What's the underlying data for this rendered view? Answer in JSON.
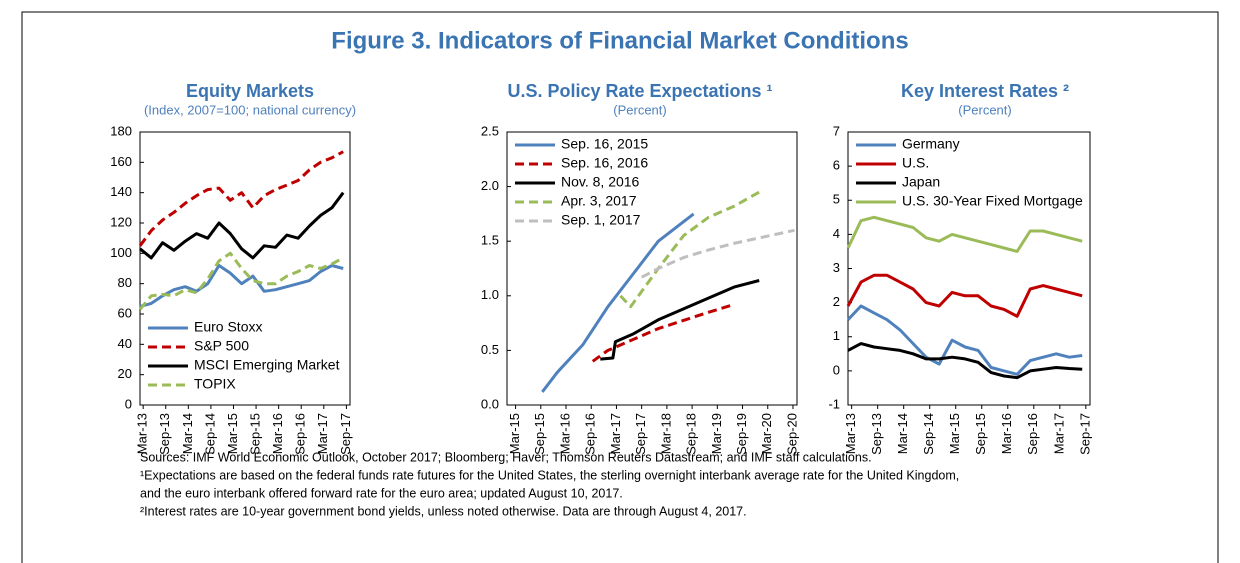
{
  "title": "Figure 3. Indicators of Financial Market Conditions",
  "chart_data": [
    {
      "type": "line",
      "title": "Equity Markets",
      "subtitle": "(Index, 2007=100; national currency)",
      "xlim": [
        2013.1,
        2017.75
      ],
      "xticks": [
        {
          "value": 2013.17,
          "label": "Mar-13"
        },
        {
          "value": 2013.67,
          "label": "Sep-13"
        },
        {
          "value": 2014.17,
          "label": "Mar-14"
        },
        {
          "value": 2014.67,
          "label": "Sep-14"
        },
        {
          "value": 2015.17,
          "label": "Mar-15"
        },
        {
          "value": 2015.67,
          "label": "Sep-15"
        },
        {
          "value": 2016.17,
          "label": "Mar-16"
        },
        {
          "value": 2016.67,
          "label": "Sep-16"
        },
        {
          "value": 2017.17,
          "label": "Mar-17"
        },
        {
          "value": 2017.67,
          "label": "Sep-17"
        }
      ],
      "ylim": [
        0,
        180
      ],
      "yticks": [
        0,
        20,
        40,
        60,
        80,
        100,
        120,
        140,
        160,
        180
      ],
      "legend": "lower-left",
      "series": [
        {
          "name": "Euro Stoxx",
          "color": "#4f81bd",
          "dash": false,
          "x": [
            2013.1,
            2013.35,
            2013.6,
            2013.85,
            2014.1,
            2014.35,
            2014.6,
            2014.85,
            2015.1,
            2015.35,
            2015.6,
            2015.85,
            2016.1,
            2016.35,
            2016.6,
            2016.85,
            2017.1,
            2017.35,
            2017.6
          ],
          "values": [
            65,
            67,
            72,
            76,
            78,
            75,
            80,
            92,
            87,
            80,
            85,
            75,
            76,
            78,
            80,
            82,
            88,
            92,
            90
          ]
        },
        {
          "name": "S&P 500",
          "color": "#c00000",
          "dash": true,
          "x": [
            2013.1,
            2013.35,
            2013.6,
            2013.85,
            2014.1,
            2014.35,
            2014.6,
            2014.85,
            2015.1,
            2015.35,
            2015.6,
            2015.85,
            2016.1,
            2016.35,
            2016.6,
            2016.85,
            2017.1,
            2017.35,
            2017.6
          ],
          "values": [
            105,
            115,
            122,
            127,
            133,
            138,
            142,
            143,
            135,
            140,
            130,
            138,
            142,
            145,
            148,
            155,
            160,
            163,
            167
          ]
        },
        {
          "name": "MSCI Emerging Market",
          "color": "#000000",
          "dash": false,
          "x": [
            2013.1,
            2013.35,
            2013.6,
            2013.85,
            2014.1,
            2014.35,
            2014.6,
            2014.85,
            2015.1,
            2015.35,
            2015.6,
            2015.85,
            2016.1,
            2016.35,
            2016.6,
            2016.85,
            2017.1,
            2017.35,
            2017.6
          ],
          "values": [
            103,
            97,
            107,
            102,
            108,
            113,
            110,
            120,
            113,
            103,
            97,
            105,
            104,
            112,
            110,
            118,
            125,
            130,
            140
          ]
        },
        {
          "name": "TOPIX",
          "color": "#9bbb59",
          "dash": true,
          "x": [
            2013.1,
            2013.35,
            2013.6,
            2013.85,
            2014.1,
            2014.35,
            2014.6,
            2014.85,
            2015.1,
            2015.35,
            2015.6,
            2015.85,
            2016.1,
            2016.35,
            2016.6,
            2016.85,
            2017.1,
            2017.35,
            2017.6
          ],
          "values": [
            63,
            72,
            73,
            72,
            76,
            74,
            83,
            95,
            100,
            90,
            82,
            80,
            80,
            85,
            88,
            92,
            90,
            93,
            97
          ]
        }
      ]
    },
    {
      "type": "line",
      "title": "U.S. Policy Rate Expectations ¹",
      "subtitle": "(Percent)",
      "xlim": [
        2015.0,
        2020.75
      ],
      "xticks": [
        {
          "value": 2015.17,
          "label": "Mar-15"
        },
        {
          "value": 2015.67,
          "label": "Sep-15"
        },
        {
          "value": 2016.17,
          "label": "Mar-16"
        },
        {
          "value": 2016.67,
          "label": "Sep-16"
        },
        {
          "value": 2017.17,
          "label": "Mar-17"
        },
        {
          "value": 2017.67,
          "label": "Sep-17"
        },
        {
          "value": 2018.17,
          "label": "Mar-18"
        },
        {
          "value": 2018.67,
          "label": "Sep-18"
        },
        {
          "value": 2019.17,
          "label": "Mar-19"
        },
        {
          "value": 2019.67,
          "label": "Sep-19"
        },
        {
          "value": 2020.17,
          "label": "Mar-20"
        },
        {
          "value": 2020.67,
          "label": "Sep-20"
        }
      ],
      "ylim": [
        0,
        2.5
      ],
      "yticks": [
        {
          "value": 0,
          "label": "0.0"
        },
        0.5,
        {
          "value": 1,
          "label": "1.0"
        },
        1.5,
        {
          "value": 2,
          "label": "2.0"
        },
        2.5
      ],
      "legend": "upper-left",
      "series": [
        {
          "name": "Sep. 16, 2015",
          "color": "#4f81bd",
          "dash": false,
          "x": [
            2015.7,
            2016.0,
            2016.5,
            2017.0,
            2017.5,
            2018.0,
            2018.7
          ],
          "values": [
            0.12,
            0.3,
            0.55,
            0.9,
            1.2,
            1.5,
            1.75
          ]
        },
        {
          "name": "Sep. 16, 2016",
          "color": "#c00000",
          "dash": true,
          "x": [
            2016.7,
            2017.0,
            2018.0,
            2019.0,
            2019.5
          ],
          "values": [
            0.4,
            0.5,
            0.7,
            0.85,
            0.92
          ]
        },
        {
          "name": "Nov. 8, 2016",
          "color": "#000000",
          "dash": false,
          "x": [
            2016.85,
            2017.1,
            2017.15,
            2017.5,
            2018.0,
            2018.5,
            2019.0,
            2019.5,
            2020.0
          ],
          "values": [
            0.42,
            0.43,
            0.58,
            0.65,
            0.78,
            0.88,
            0.98,
            1.08,
            1.14
          ]
        },
        {
          "name": "Apr. 3, 2017",
          "color": "#9bbb59",
          "dash": true,
          "x": [
            2017.25,
            2017.45,
            2018.0,
            2018.5,
            2019.0,
            2019.5,
            2020.0
          ],
          "values": [
            1.0,
            0.9,
            1.25,
            1.55,
            1.72,
            1.82,
            1.95
          ]
        },
        {
          "name": "Sep. 1, 2017",
          "color": "#bfbfbf",
          "dash": true,
          "x": [
            2017.67,
            2018.0,
            2018.5,
            2019.0,
            2019.5,
            2020.0,
            2020.7
          ],
          "values": [
            1.17,
            1.25,
            1.35,
            1.42,
            1.48,
            1.53,
            1.6
          ]
        }
      ]
    },
    {
      "type": "line",
      "title": "Key Interest Rates ²",
      "subtitle": "(Percent)",
      "xlim": [
        2013.1,
        2017.75
      ],
      "xticks": [
        {
          "value": 2013.17,
          "label": "Mar-13"
        },
        {
          "value": 2013.67,
          "label": "Sep-13"
        },
        {
          "value": 2014.17,
          "label": "Mar-14"
        },
        {
          "value": 2014.67,
          "label": "Sep-14"
        },
        {
          "value": 2015.17,
          "label": "Mar-15"
        },
        {
          "value": 2015.67,
          "label": "Sep-15"
        },
        {
          "value": 2016.17,
          "label": "Mar-16"
        },
        {
          "value": 2016.67,
          "label": "Sep-16"
        },
        {
          "value": 2017.17,
          "label": "Mar-17"
        },
        {
          "value": 2017.67,
          "label": "Sep-17"
        }
      ],
      "ylim": [
        -1,
        7
      ],
      "yticks": [
        -1,
        0,
        1,
        2,
        3,
        4,
        5,
        6,
        7
      ],
      "legend": "upper-left",
      "series": [
        {
          "name": "Germany",
          "color": "#4f81bd",
          "dash": false,
          "x": [
            2013.1,
            2013.35,
            2013.6,
            2013.85,
            2014.1,
            2014.35,
            2014.6,
            2014.85,
            2015.1,
            2015.35,
            2015.6,
            2015.85,
            2016.1,
            2016.35,
            2016.6,
            2016.85,
            2017.1,
            2017.35,
            2017.6
          ],
          "values": [
            1.5,
            1.9,
            1.7,
            1.5,
            1.2,
            0.8,
            0.4,
            0.2,
            0.9,
            0.7,
            0.6,
            0.1,
            0.0,
            -0.1,
            0.3,
            0.4,
            0.5,
            0.4,
            0.45
          ]
        },
        {
          "name": "U.S.",
          "color": "#c00000",
          "dash": false,
          "x": [
            2013.1,
            2013.35,
            2013.6,
            2013.85,
            2014.1,
            2014.35,
            2014.6,
            2014.85,
            2015.1,
            2015.35,
            2015.6,
            2015.85,
            2016.1,
            2016.35,
            2016.6,
            2016.85,
            2017.1,
            2017.35,
            2017.6
          ],
          "values": [
            1.9,
            2.6,
            2.8,
            2.8,
            2.6,
            2.4,
            2.0,
            1.9,
            2.3,
            2.2,
            2.2,
            1.9,
            1.8,
            1.6,
            2.4,
            2.5,
            2.4,
            2.3,
            2.2
          ]
        },
        {
          "name": "Japan",
          "color": "#000000",
          "dash": false,
          "x": [
            2013.1,
            2013.35,
            2013.6,
            2013.85,
            2014.1,
            2014.35,
            2014.6,
            2014.85,
            2015.1,
            2015.35,
            2015.6,
            2015.85,
            2016.1,
            2016.35,
            2016.6,
            2016.85,
            2017.1,
            2017.35,
            2017.6
          ],
          "values": [
            0.6,
            0.8,
            0.7,
            0.65,
            0.6,
            0.5,
            0.35,
            0.35,
            0.4,
            0.35,
            0.25,
            -0.05,
            -0.15,
            -0.2,
            0.0,
            0.05,
            0.1,
            0.07,
            0.05
          ]
        },
        {
          "name": "U.S. 30-Year Fixed Mortgage",
          "color": "#9bbb59",
          "dash": false,
          "x": [
            2013.1,
            2013.35,
            2013.6,
            2013.85,
            2014.1,
            2014.35,
            2014.6,
            2014.85,
            2015.1,
            2015.35,
            2015.6,
            2015.85,
            2016.1,
            2016.35,
            2016.6,
            2016.85,
            2017.1,
            2017.35,
            2017.6
          ],
          "values": [
            3.6,
            4.4,
            4.5,
            4.4,
            4.3,
            4.2,
            3.9,
            3.8,
            4.0,
            3.9,
            3.8,
            3.7,
            3.6,
            3.5,
            4.1,
            4.1,
            4.0,
            3.9,
            3.8
          ]
        }
      ]
    }
  ],
  "footnotes": [
    "Sources: IMF World Economic Outlook, October 2017; Bloomberg; Haver; Thomson Reuters Datastream; and IMF staff calculations.",
    "¹Expectations are based on the federal funds rate futures for the United States, the sterling overnight interbank average rate for the United Kingdom,",
    "and the euro interbank offered forward rate for the euro area; updated August 10, 2017.",
    "²Interest rates are 10-year government bond yields, unless noted otherwise. Data are through August 4, 2017."
  ]
}
